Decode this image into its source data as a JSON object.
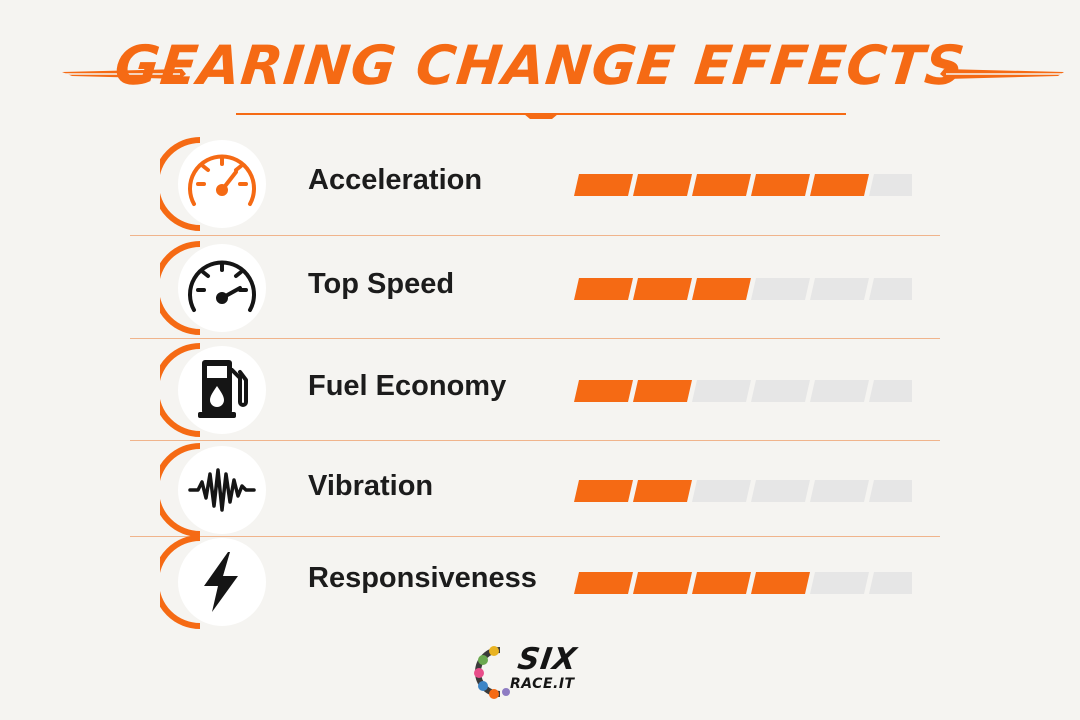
{
  "title": "GEARING CHANGE EFFECTS",
  "colors": {
    "accent": "#f56a14",
    "empty": "#e6e6e6",
    "text": "#1c1c1c",
    "background": "#f5f4f1"
  },
  "segments_total": 6,
  "metrics": [
    {
      "label": "Acceleration",
      "icon": "speedometer-icon",
      "filled": 5
    },
    {
      "label": "Top Speed",
      "icon": "gauge-icon",
      "filled": 3
    },
    {
      "label": "Fuel Economy",
      "icon": "fuel-pump-icon",
      "filled": 2
    },
    {
      "label": "Vibration",
      "icon": "vibration-wave-icon",
      "filled": 2
    },
    {
      "label": "Responsiveness",
      "icon": "lightning-bolt-icon",
      "filled": 4
    }
  ],
  "logo": {
    "line1": "SIX",
    "line2": "RACE.IT"
  }
}
